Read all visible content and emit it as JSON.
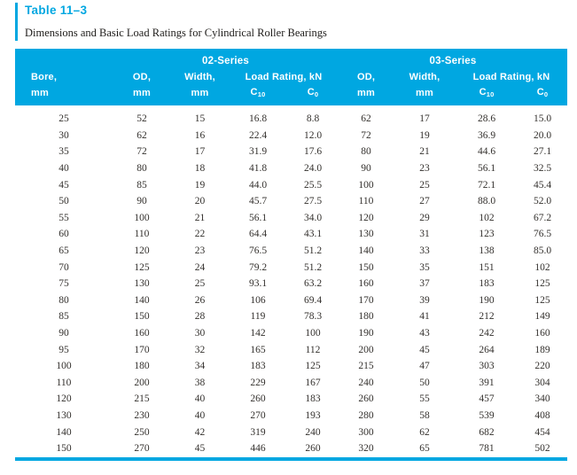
{
  "title": "Table 11–3",
  "subtitle": "Dimensions and Basic Load Ratings for Cylindrical Roller Bearings",
  "colors": {
    "accent": "#00A7E1",
    "header_text": "#FFFFFF",
    "body_text": "#33302D"
  },
  "header": {
    "series": [
      "02-Series",
      "03-Series"
    ],
    "bore_label": "Bore,",
    "od_label": "OD,",
    "width_label": "Width,",
    "load_rating_label": "Load Rating, kN",
    "unit_mm": "mm",
    "c10": {
      "base": "C",
      "sub": "10"
    },
    "c0": {
      "base": "C",
      "sub": "0"
    }
  },
  "table": {
    "rows": [
      [
        "25",
        "52",
        "15",
        "16.8",
        "8.8",
        "62",
        "17",
        "28.6",
        "15.0"
      ],
      [
        "30",
        "62",
        "16",
        "22.4",
        "12.0",
        "72",
        "19",
        "36.9",
        "20.0"
      ],
      [
        "35",
        "72",
        "17",
        "31.9",
        "17.6",
        "80",
        "21",
        "44.6",
        "27.1"
      ],
      [
        "40",
        "80",
        "18",
        "41.8",
        "24.0",
        "90",
        "23",
        "56.1",
        "32.5"
      ],
      [
        "45",
        "85",
        "19",
        "44.0",
        "25.5",
        "100",
        "25",
        "72.1",
        "45.4"
      ],
      [
        "50",
        "90",
        "20",
        "45.7",
        "27.5",
        "110",
        "27",
        "88.0",
        "52.0"
      ],
      [
        "55",
        "100",
        "21",
        "56.1",
        "34.0",
        "120",
        "29",
        "102",
        "67.2"
      ],
      [
        "60",
        "110",
        "22",
        "64.4",
        "43.1",
        "130",
        "31",
        "123",
        "76.5"
      ],
      [
        "65",
        "120",
        "23",
        "76.5",
        "51.2",
        "140",
        "33",
        "138",
        "85.0"
      ],
      [
        "70",
        "125",
        "24",
        "79.2",
        "51.2",
        "150",
        "35",
        "151",
        "102"
      ],
      [
        "75",
        "130",
        "25",
        "93.1",
        "63.2",
        "160",
        "37",
        "183",
        "125"
      ],
      [
        "80",
        "140",
        "26",
        "106",
        "69.4",
        "170",
        "39",
        "190",
        "125"
      ],
      [
        "85",
        "150",
        "28",
        "119",
        "78.3",
        "180",
        "41",
        "212",
        "149"
      ],
      [
        "90",
        "160",
        "30",
        "142",
        "100",
        "190",
        "43",
        "242",
        "160"
      ],
      [
        "95",
        "170",
        "32",
        "165",
        "112",
        "200",
        "45",
        "264",
        "189"
      ],
      [
        "100",
        "180",
        "34",
        "183",
        "125",
        "215",
        "47",
        "303",
        "220"
      ],
      [
        "110",
        "200",
        "38",
        "229",
        "167",
        "240",
        "50",
        "391",
        "304"
      ],
      [
        "120",
        "215",
        "40",
        "260",
        "183",
        "260",
        "55",
        "457",
        "340"
      ],
      [
        "130",
        "230",
        "40",
        "270",
        "193",
        "280",
        "58",
        "539",
        "408"
      ],
      [
        "140",
        "250",
        "42",
        "319",
        "240",
        "300",
        "62",
        "682",
        "454"
      ],
      [
        "150",
        "270",
        "45",
        "446",
        "260",
        "320",
        "65",
        "781",
        "502"
      ]
    ]
  }
}
